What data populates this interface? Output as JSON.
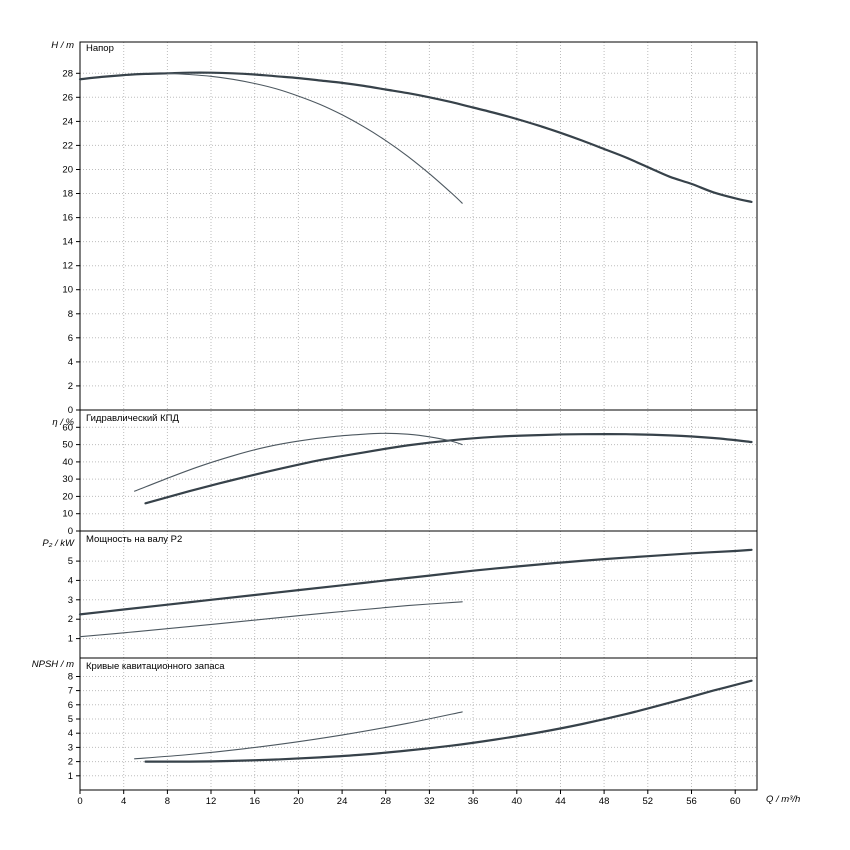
{
  "axis": {
    "x_label": "Q / m³/h",
    "x_ticks": [
      0,
      4,
      8,
      12,
      16,
      20,
      24,
      28,
      32,
      36,
      40,
      44,
      48,
      52,
      56,
      60
    ],
    "x_max": 62
  },
  "colors": {
    "curve": "#37424a",
    "curve_thin": "#4d5860",
    "grid": "#bdbdbd",
    "axis": "#000000",
    "background": "#ffffff"
  },
  "chart_data": [
    {
      "type": "line",
      "title": "Напор",
      "ylabel": "H / m",
      "ylim": [
        0,
        30.6
      ],
      "yticks": [
        0,
        2,
        4,
        6,
        8,
        10,
        12,
        14,
        16,
        18,
        20,
        22,
        24,
        26,
        28
      ],
      "grid": true,
      "series": [
        {
          "name": "head-main",
          "weight": "thick",
          "x": [
            0,
            2,
            4,
            6,
            8,
            10,
            12,
            14,
            16,
            18,
            20,
            22,
            24,
            26,
            28,
            30,
            32,
            34,
            36,
            38,
            40,
            42,
            44,
            46,
            48,
            50,
            52,
            54,
            56,
            58,
            60,
            61.5
          ],
          "y": [
            27.5,
            27.7,
            27.85,
            27.95,
            28.0,
            28.05,
            28.05,
            28.0,
            27.9,
            27.75,
            27.6,
            27.4,
            27.2,
            26.95,
            26.65,
            26.35,
            26.0,
            25.6,
            25.15,
            24.7,
            24.2,
            23.65,
            23.05,
            22.4,
            21.7,
            21.0,
            20.2,
            19.4,
            18.8,
            18.1,
            17.6,
            17.3
          ]
        },
        {
          "name": "head-reduced",
          "weight": "thin",
          "x": [
            8,
            10,
            12,
            14,
            16,
            18,
            20,
            22,
            24,
            26,
            28,
            30,
            32,
            34,
            35
          ],
          "y": [
            28.0,
            27.9,
            27.75,
            27.5,
            27.15,
            26.7,
            26.1,
            25.4,
            24.55,
            23.55,
            22.4,
            21.1,
            19.65,
            18.05,
            17.2
          ]
        }
      ]
    },
    {
      "type": "line",
      "title": "Гидравлический КПД",
      "ylabel": "η / %",
      "ylim": [
        0,
        70
      ],
      "yticks": [
        0,
        10,
        20,
        30,
        40,
        50,
        60
      ],
      "grid": true,
      "series": [
        {
          "name": "efficiency-main",
          "weight": "thick",
          "x": [
            6,
            10,
            14,
            18,
            22,
            26,
            30,
            34,
            38,
            42,
            46,
            50,
            54,
            58,
            61.5
          ],
          "y": [
            16,
            23,
            29.5,
            35.5,
            41,
            45.5,
            49.5,
            52.5,
            54.5,
            55.5,
            56,
            56,
            55.3,
            53.8,
            51.5
          ]
        },
        {
          "name": "efficiency-reduced",
          "weight": "thin",
          "x": [
            5,
            8,
            11,
            14,
            17,
            20,
            23,
            26,
            28,
            30,
            32,
            34,
            35
          ],
          "y": [
            23,
            30.5,
            37.5,
            43.5,
            48.5,
            52,
            54.5,
            56,
            56.5,
            56,
            54.5,
            52,
            50
          ]
        }
      ]
    },
    {
      "type": "line",
      "title": "Мощность на валу P2",
      "ylabel": "P₂ / kW",
      "ylim": [
        0,
        6.55
      ],
      "yticks": [
        1,
        2,
        3,
        4,
        5
      ],
      "grid": true,
      "series": [
        {
          "name": "power-main",
          "weight": "thick",
          "x": [
            0,
            4,
            8,
            12,
            16,
            20,
            24,
            28,
            32,
            36,
            40,
            44,
            48,
            52,
            56,
            60,
            61.5
          ],
          "y": [
            2.25,
            2.5,
            2.75,
            3.0,
            3.25,
            3.5,
            3.75,
            4.0,
            4.25,
            4.5,
            4.72,
            4.92,
            5.1,
            5.25,
            5.4,
            5.52,
            5.58
          ]
        },
        {
          "name": "power-reduced",
          "weight": "thin",
          "x": [
            0,
            5,
            10,
            15,
            20,
            25,
            30,
            35
          ],
          "y": [
            1.1,
            1.35,
            1.62,
            1.9,
            2.18,
            2.45,
            2.7,
            2.9
          ]
        }
      ]
    },
    {
      "type": "line",
      "title": "Кривые кавитационного запаса",
      "ylabel": "NPSH / m",
      "ylim": [
        0,
        9.3
      ],
      "yticks": [
        1,
        2,
        3,
        4,
        5,
        6,
        7,
        8
      ],
      "grid": true,
      "series": [
        {
          "name": "npsh-main",
          "weight": "thick",
          "x": [
            6,
            10,
            14,
            18,
            22,
            26,
            30,
            34,
            38,
            42,
            46,
            50,
            54,
            58,
            61.5
          ],
          "y": [
            2.0,
            2.0,
            2.05,
            2.15,
            2.3,
            2.5,
            2.78,
            3.12,
            3.55,
            4.05,
            4.65,
            5.35,
            6.15,
            7.0,
            7.7
          ]
        },
        {
          "name": "npsh-reduced",
          "weight": "thin",
          "x": [
            5,
            10,
            15,
            20,
            25,
            30,
            35
          ],
          "y": [
            2.2,
            2.5,
            2.9,
            3.4,
            4.0,
            4.7,
            5.5
          ]
        }
      ]
    }
  ]
}
